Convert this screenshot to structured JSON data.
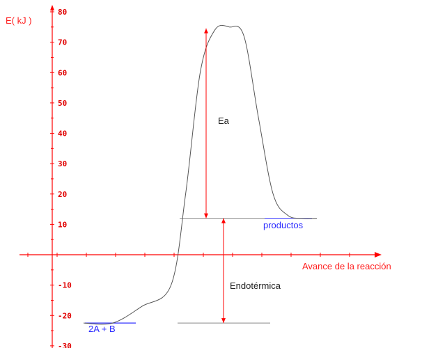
{
  "chart_data": {
    "type": "line",
    "ylabel": "E( kJ )",
    "xlabel": "Avance de la reacción",
    "ylim": [
      -30,
      80
    ],
    "yticks": [
      80,
      70,
      60,
      50,
      40,
      30,
      20,
      10,
      -10,
      -20,
      -30
    ],
    "series": [
      {
        "values_note": "",
        "x": [
          0,
          1,
          2,
          3,
          3.5,
          4,
          4.5,
          5,
          5.5,
          6,
          6.5,
          7,
          7.5,
          8
        ],
        "y": [
          -22.5,
          -22.5,
          -17,
          -10,
          20,
          60,
          74,
          75,
          72,
          45,
          20,
          13,
          12,
          12
        ]
      }
    ],
    "levels": {
      "reactants": -22.5,
      "products": 12,
      "peak": 75
    },
    "annotations": {
      "activation_energy": "Ea",
      "enthalpy": "Endotérmica",
      "reactants_label": "2A + B",
      "products_label": "productos"
    },
    "colors": {
      "axis": "#ff0000",
      "curve": "#555555",
      "arrow": "#ff0000",
      "level_line": "#888888",
      "blue_line": "#3030ff"
    }
  }
}
